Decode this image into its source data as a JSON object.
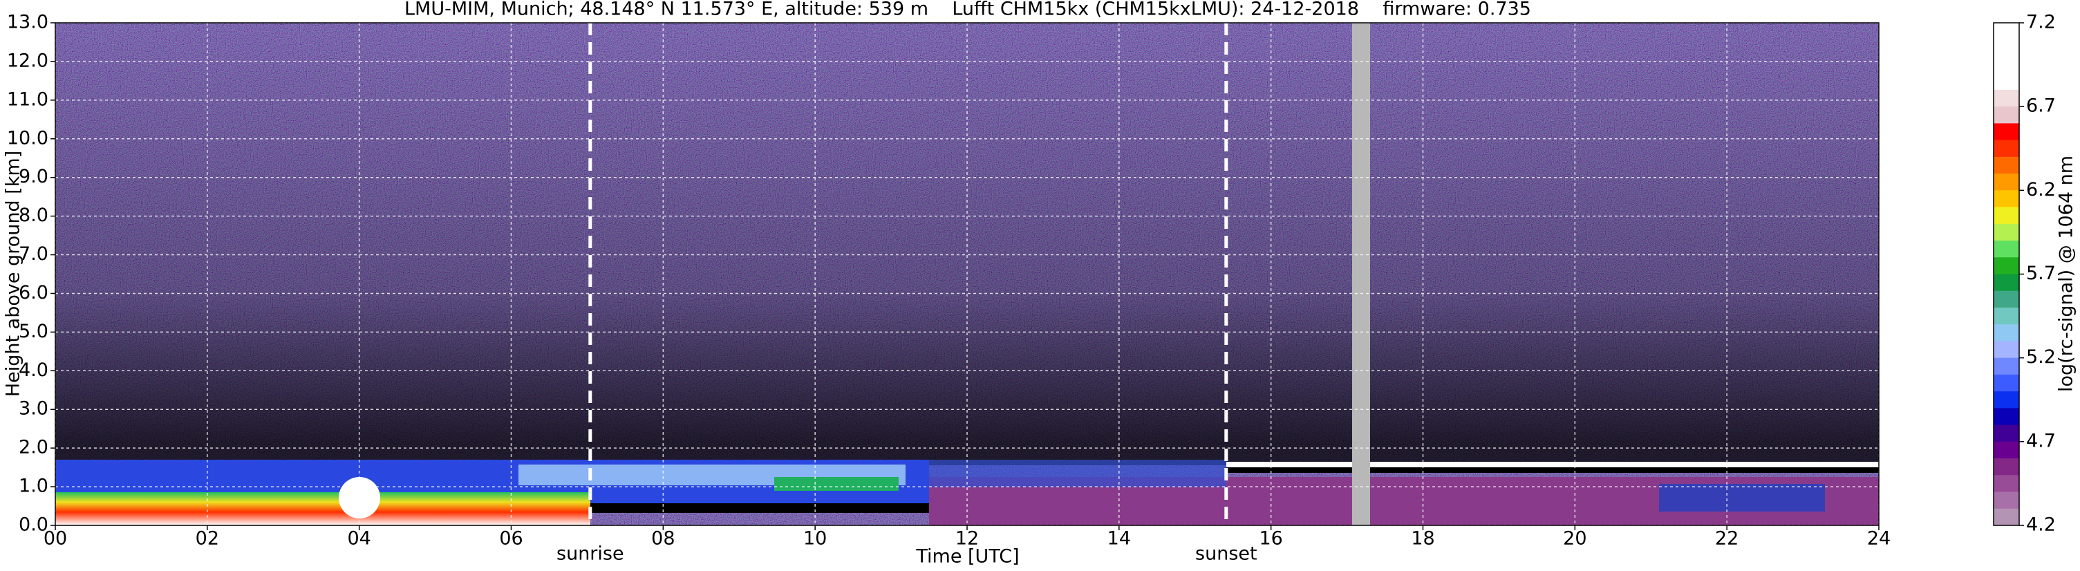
{
  "chart_data": {
    "type": "heatmap",
    "title": "LMU-MIM, Munich; 48.148° N 11.573° E, altitude: 539 m    Lufft CHM15kx (CHM15kxLMU): 24-12-2018    firmware: 0.735",
    "x_label": "Time [UTC]",
    "y_label": "Height above ground [km]",
    "xlim": [
      0,
      24
    ],
    "xticks": [
      {
        "value": 0,
        "label": "00"
      },
      {
        "value": 2,
        "label": "02"
      },
      {
        "value": 4,
        "label": "04"
      },
      {
        "value": 6,
        "label": "06"
      },
      {
        "value": 8,
        "label": "08"
      },
      {
        "value": 10,
        "label": "10"
      },
      {
        "value": 12,
        "label": "12"
      },
      {
        "value": 14,
        "label": "14"
      },
      {
        "value": 16,
        "label": "16"
      },
      {
        "value": 18,
        "label": "18"
      },
      {
        "value": 20,
        "label": "20"
      },
      {
        "value": 22,
        "label": "22"
      },
      {
        "value": 24,
        "label": "24"
      }
    ],
    "ylim": [
      0,
      13
    ],
    "yticks": [
      {
        "value": 0,
        "label": "0.0"
      },
      {
        "value": 1,
        "label": "1.0"
      },
      {
        "value": 2,
        "label": "2.0"
      },
      {
        "value": 3,
        "label": "3.0"
      },
      {
        "value": 4,
        "label": "4.0"
      },
      {
        "value": 5,
        "label": "5.0"
      },
      {
        "value": 6,
        "label": "6.0"
      },
      {
        "value": 7,
        "label": "7.0"
      },
      {
        "value": 8,
        "label": "8.0"
      },
      {
        "value": 9,
        "label": "9.0"
      },
      {
        "value": 10,
        "label": "10.0"
      },
      {
        "value": 11,
        "label": "11.0"
      },
      {
        "value": 12,
        "label": "12.0"
      },
      {
        "value": 13,
        "label": "13.0"
      }
    ],
    "grid": true,
    "annotations": [
      {
        "text": "sunrise",
        "x": 7.04
      },
      {
        "text": "sunset",
        "x": 15.41
      }
    ],
    "colorbar": {
      "label": "log(rc-signal) @ 1064 nm",
      "lim": [
        4.2,
        7.2
      ],
      "ticks": [
        4.2,
        4.7,
        5.2,
        5.7,
        6.2,
        6.7,
        7.2
      ],
      "colors": [
        "#ffffff",
        "#ffffff",
        "#ffffff",
        "#ffffff",
        "#f2dede",
        "#e8c6cc",
        "#ff0000",
        "#ff3000",
        "#ff6a00",
        "#ff9a00",
        "#ffc400",
        "#f0f020",
        "#b4f050",
        "#60e060",
        "#20b020",
        "#109a40",
        "#40a888",
        "#70c8c0",
        "#90c8f4",
        "#a4b4ff",
        "#7088ff",
        "#3c5cff",
        "#0c30f0",
        "#0a00b8",
        "#400098",
        "#6a0090",
        "#842888",
        "#984c98",
        "#a870a8",
        "#b494b4"
      ]
    }
  }
}
